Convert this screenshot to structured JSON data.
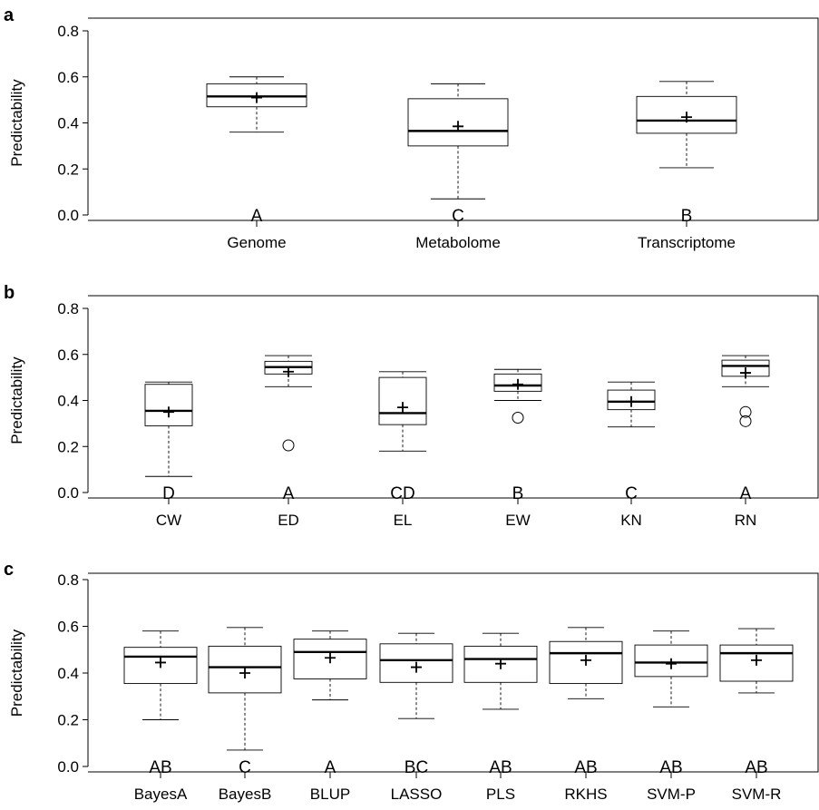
{
  "chart_data": [
    {
      "type": "box",
      "panel_label": "a",
      "ylabel": "Predictability",
      "ylim": [
        0,
        0.8
      ],
      "yticks": [
        "0.0",
        "0.2",
        "0.4",
        "0.6",
        "0.8"
      ],
      "categories": [
        "Genome",
        "Metabolome",
        "Transcriptome"
      ],
      "boxes": [
        {
          "min": 0.36,
          "q1": 0.47,
          "median": 0.515,
          "q3": 0.57,
          "max": 0.6,
          "mean": 0.51,
          "outliers": [],
          "group": "A"
        },
        {
          "min": 0.07,
          "q1": 0.3,
          "median": 0.365,
          "q3": 0.505,
          "max": 0.57,
          "mean": 0.385,
          "outliers": [],
          "group": "C"
        },
        {
          "min": 0.205,
          "q1": 0.355,
          "median": 0.41,
          "q3": 0.515,
          "max": 0.58,
          "mean": 0.425,
          "outliers": [],
          "group": "B"
        }
      ]
    },
    {
      "type": "box",
      "panel_label": "b",
      "ylabel": "Predictability",
      "ylim": [
        0,
        0.8
      ],
      "yticks": [
        "0.0",
        "0.2",
        "0.4",
        "0.6",
        "0.8"
      ],
      "categories": [
        "CW",
        "ED",
        "EL",
        "EW",
        "KN",
        "RN"
      ],
      "boxes": [
        {
          "min": 0.07,
          "q1": 0.29,
          "median": 0.355,
          "q3": 0.47,
          "max": 0.48,
          "mean": 0.35,
          "outliers": [],
          "group": "D"
        },
        {
          "min": 0.46,
          "q1": 0.515,
          "median": 0.545,
          "q3": 0.57,
          "max": 0.595,
          "mean": 0.525,
          "outliers": [
            0.205
          ],
          "group": "A"
        },
        {
          "min": 0.18,
          "q1": 0.295,
          "median": 0.345,
          "q3": 0.5,
          "max": 0.525,
          "mean": 0.37,
          "outliers": [],
          "group": "CD"
        },
        {
          "min": 0.4,
          "q1": 0.44,
          "median": 0.465,
          "q3": 0.515,
          "max": 0.535,
          "mean": 0.47,
          "outliers": [
            0.325
          ],
          "group": "B"
        },
        {
          "min": 0.285,
          "q1": 0.36,
          "median": 0.395,
          "q3": 0.445,
          "max": 0.48,
          "mean": 0.395,
          "outliers": [],
          "group": "C"
        },
        {
          "min": 0.46,
          "q1": 0.505,
          "median": 0.55,
          "q3": 0.575,
          "max": 0.595,
          "mean": 0.52,
          "outliers": [
            0.35,
            0.31
          ],
          "group": "A"
        }
      ]
    },
    {
      "type": "box",
      "panel_label": "c",
      "ylabel": "Predictability",
      "ylim": [
        0,
        0.8
      ],
      "yticks": [
        "0.0",
        "0.2",
        "0.4",
        "0.6",
        "0.8"
      ],
      "categories": [
        "BayesA",
        "BayesB",
        "BLUP",
        "LASSO",
        "PLS",
        "RKHS",
        "SVM-P",
        "SVM-R"
      ],
      "boxes": [
        {
          "min": 0.2,
          "q1": 0.355,
          "median": 0.47,
          "q3": 0.51,
          "max": 0.58,
          "mean": 0.445,
          "outliers": [],
          "group": "AB"
        },
        {
          "min": 0.07,
          "q1": 0.315,
          "median": 0.425,
          "q3": 0.515,
          "max": 0.595,
          "mean": 0.4,
          "outliers": [],
          "group": "C"
        },
        {
          "min": 0.285,
          "q1": 0.375,
          "median": 0.49,
          "q3": 0.545,
          "max": 0.58,
          "mean": 0.465,
          "outliers": [],
          "group": "A"
        },
        {
          "min": 0.205,
          "q1": 0.36,
          "median": 0.455,
          "q3": 0.525,
          "max": 0.57,
          "mean": 0.425,
          "outliers": [],
          "group": "BC"
        },
        {
          "min": 0.245,
          "q1": 0.36,
          "median": 0.46,
          "q3": 0.515,
          "max": 0.57,
          "mean": 0.44,
          "outliers": [],
          "group": "AB"
        },
        {
          "min": 0.29,
          "q1": 0.355,
          "median": 0.485,
          "q3": 0.535,
          "max": 0.595,
          "mean": 0.455,
          "outliers": [],
          "group": "AB"
        },
        {
          "min": 0.255,
          "q1": 0.385,
          "median": 0.445,
          "q3": 0.52,
          "max": 0.58,
          "mean": 0.44,
          "outliers": [],
          "group": "AB"
        },
        {
          "min": 0.315,
          "q1": 0.365,
          "median": 0.485,
          "q3": 0.52,
          "max": 0.59,
          "mean": 0.455,
          "outliers": [],
          "group": "AB"
        }
      ]
    }
  ]
}
